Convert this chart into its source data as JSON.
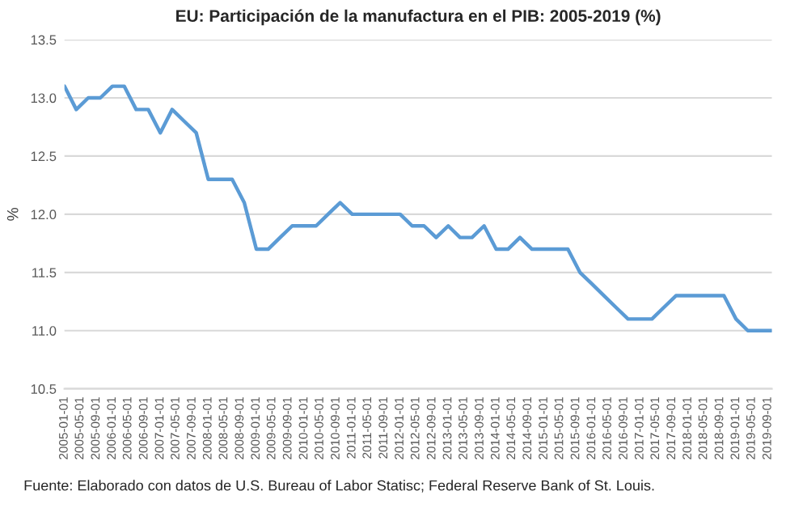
{
  "chart_data": {
    "type": "line",
    "title": "EU: Participación de la manufactura en el PIB: 2005-2019 (%)",
    "ylabel": "%",
    "annotations": [
      "Fuente: Elaborado con datos de U.S. Bureau of Labor Statisc; Federal Reserve Bank of St. Louis."
    ],
    "x": [
      "2005-01-01",
      "2005-04-01",
      "2005-07-01",
      "2005-10-01",
      "2006-01-01",
      "2006-04-01",
      "2006-07-01",
      "2006-10-01",
      "2007-01-01",
      "2007-04-01",
      "2007-07-01",
      "2007-10-01",
      "2008-01-01",
      "2008-04-01",
      "2008-07-01",
      "2008-10-01",
      "2009-01-01",
      "2009-04-01",
      "2009-07-01",
      "2009-10-01",
      "2010-01-01",
      "2010-04-01",
      "2010-07-01",
      "2010-10-01",
      "2011-01-01",
      "2011-04-01",
      "2011-07-01",
      "2011-10-01",
      "2012-01-01",
      "2012-04-01",
      "2012-07-01",
      "2012-10-01",
      "2013-01-01",
      "2013-04-01",
      "2013-07-01",
      "2013-10-01",
      "2014-01-01",
      "2014-04-01",
      "2014-07-01",
      "2014-10-01",
      "2015-01-01",
      "2015-04-01",
      "2015-07-01",
      "2015-10-01",
      "2016-01-01",
      "2016-04-01",
      "2016-07-01",
      "2016-10-01",
      "2017-01-01",
      "2017-04-01",
      "2017-07-01",
      "2017-10-01",
      "2018-01-01",
      "2018-04-01",
      "2018-07-01",
      "2018-10-01",
      "2019-01-01",
      "2019-04-01",
      "2019-07-01",
      "2019-10-01"
    ],
    "series": [
      {
        "color": "#5b9bd5",
        "values": [
          13.1,
          12.9,
          13.0,
          13.0,
          13.1,
          13.1,
          12.9,
          12.9,
          12.7,
          12.9,
          12.8,
          12.7,
          12.3,
          12.3,
          12.3,
          12.1,
          11.7,
          11.7,
          11.8,
          11.9,
          11.9,
          11.9,
          12.0,
          12.1,
          12.0,
          12.0,
          12.0,
          12.0,
          12.0,
          11.9,
          11.9,
          11.8,
          11.9,
          11.8,
          11.8,
          11.9,
          11.7,
          11.7,
          11.8,
          11.7,
          11.7,
          11.7,
          11.7,
          11.5,
          11.4,
          11.3,
          11.2,
          11.1,
          11.1,
          11.1,
          11.2,
          11.3,
          11.3,
          11.3,
          11.3,
          11.3,
          11.1,
          11.0,
          11.0,
          11.0
        ]
      }
    ],
    "xlim": [
      "2005-01-01",
      "2019-10-01"
    ],
    "xticks": [
      "2005-01-01",
      "2005-05-01",
      "2005-09-01",
      "2006-01-01",
      "2006-05-01",
      "2006-09-01",
      "2007-01-01",
      "2007-05-01",
      "2007-09-01",
      "2008-01-01",
      "2008-05-01",
      "2008-09-01",
      "2009-01-01",
      "2009-05-01",
      "2009-09-01",
      "2010-01-01",
      "2010-05-01",
      "2010-09-01",
      "2011-01-01",
      "2011-05-01",
      "2011-09-01",
      "2012-01-01",
      "2012-05-01",
      "2012-09-01",
      "2013-01-01",
      "2013-05-01",
      "2013-09-01",
      "2014-01-01",
      "2014-05-01",
      "2014-09-01",
      "2015-01-01",
      "2015-05-01",
      "2015-09-01",
      "2016-01-01",
      "2016-05-01",
      "2016-09-01",
      "2017-01-01",
      "2017-05-01",
      "2017-09-01",
      "2018-01-01",
      "2018-05-01",
      "2018-09-01",
      "2019-01-01",
      "2019-05-01",
      "2019-09-01"
    ],
    "ylim": [
      10.5,
      13.5
    ],
    "yticks": [
      {
        "value": 10.5,
        "label": "10.5"
      },
      {
        "value": 11.0,
        "label": "11.0"
      },
      {
        "value": 11.5,
        "label": "11.5"
      },
      {
        "value": 12.0,
        "label": "12.0"
      },
      {
        "value": 12.5,
        "label": "12.5"
      },
      {
        "value": 13.0,
        "label": "13.0"
      },
      {
        "value": 13.5,
        "label": "13.5"
      }
    ],
    "grid": "y",
    "legend": false,
    "marker": "none",
    "line_style": "solid"
  }
}
